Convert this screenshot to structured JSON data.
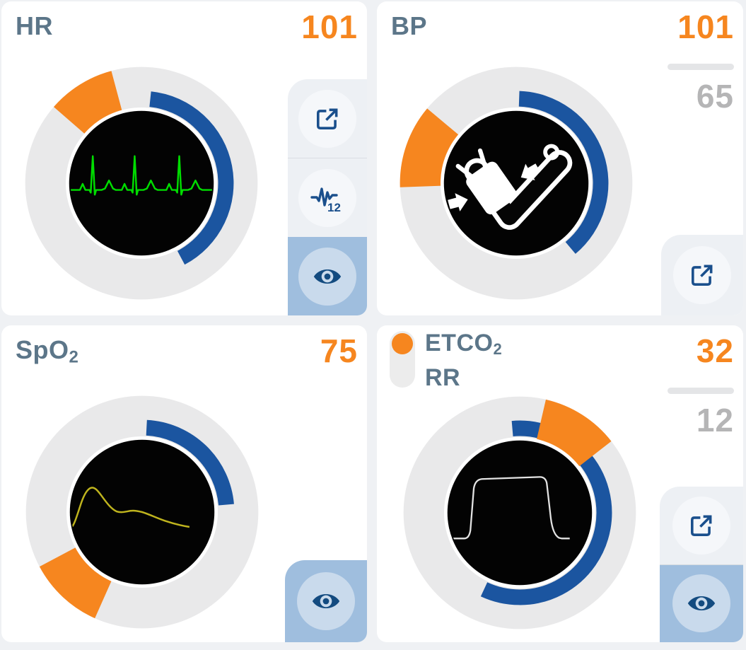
{
  "page_bg": "#EFF1F4",
  "colors": {
    "value_orange": "#F6861F",
    "gauge_blue": "#1B55A0",
    "icon_blue": "#1A4F8C",
    "ring_gray": "#E9E9EA",
    "title_slate": "#5C7689",
    "secondary_value_gray": "#B5B5B6",
    "eye_active_bg": "#9FBEDE",
    "eye_active_circle": "#C9DAEC",
    "ecg_green": "#00DC00",
    "pleth_yellow": "#BFB41E",
    "capno_white": "#E3E3E3"
  },
  "panels": {
    "hr": {
      "title": "HR",
      "value": "101",
      "twelve_lead_label": "12",
      "gauge": {
        "kind": "radial-dial",
        "center_waveform": "ecg",
        "alarm_wedge_deg": [
          -49,
          -15
        ],
        "value_arc_deg": [
          6,
          152
        ]
      },
      "buttons": [
        "expand",
        "twelve-lead-ecg",
        "visibility"
      ],
      "visibility_active": true
    },
    "bp": {
      "title": "BP",
      "value_systolic": "101",
      "value_diastolic": "65",
      "gauge": {
        "kind": "radial-dial",
        "center_icon": "nibp-cuff",
        "alarm_wedge_deg": [
          -92,
          -50
        ],
        "value_arc_deg": [
          2,
          140
        ]
      },
      "buttons": [
        "expand"
      ],
      "visibility_active": false
    },
    "spo2": {
      "title_base": "SpO",
      "title_sub": "2",
      "value": "75",
      "gauge": {
        "kind": "radial-dial",
        "center_waveform": "pleth",
        "alarm_wedge_deg": [
          204,
          242
        ],
        "value_arc_deg": [
          3,
          85
        ]
      },
      "buttons": [
        "visibility"
      ],
      "visibility_active": true
    },
    "etco2": {
      "toggle_primary_base": "ETCO",
      "toggle_primary_sub": "2",
      "toggle_secondary": "RR",
      "value_primary": "32",
      "value_secondary": "12",
      "gauge": {
        "kind": "radial-dial",
        "center_waveform": "capnogram",
        "alarm_wedge_deg": [
          13,
          52
        ],
        "value_arc_deg": [
          -5,
          205
        ]
      },
      "buttons": [
        "expand",
        "visibility"
      ],
      "visibility_active": true
    }
  }
}
